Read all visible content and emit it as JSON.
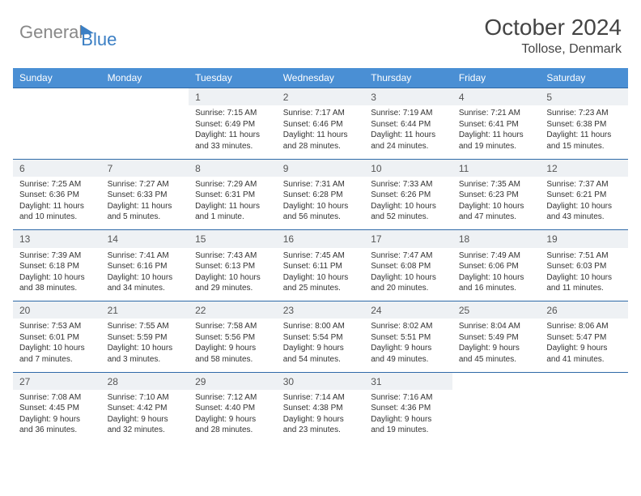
{
  "brand": {
    "general": "General",
    "blue": "Blue"
  },
  "title": "October 2024",
  "location": "Tollose, Denmark",
  "dayHeaders": [
    "Sunday",
    "Monday",
    "Tuesday",
    "Wednesday",
    "Thursday",
    "Friday",
    "Saturday"
  ],
  "colors": {
    "header_bg": "#4a8fd4",
    "header_border": "#2f6aa8",
    "dayshade": "#eef1f4",
    "logo_gray": "#888888",
    "logo_blue": "#3b7fc4"
  },
  "weeks": [
    [
      null,
      null,
      {
        "n": "1",
        "sr": "Sunrise: 7:15 AM",
        "ss": "Sunset: 6:49 PM",
        "d1": "Daylight: 11 hours",
        "d2": "and 33 minutes."
      },
      {
        "n": "2",
        "sr": "Sunrise: 7:17 AM",
        "ss": "Sunset: 6:46 PM",
        "d1": "Daylight: 11 hours",
        "d2": "and 28 minutes."
      },
      {
        "n": "3",
        "sr": "Sunrise: 7:19 AM",
        "ss": "Sunset: 6:44 PM",
        "d1": "Daylight: 11 hours",
        "d2": "and 24 minutes."
      },
      {
        "n": "4",
        "sr": "Sunrise: 7:21 AM",
        "ss": "Sunset: 6:41 PM",
        "d1": "Daylight: 11 hours",
        "d2": "and 19 minutes."
      },
      {
        "n": "5",
        "sr": "Sunrise: 7:23 AM",
        "ss": "Sunset: 6:38 PM",
        "d1": "Daylight: 11 hours",
        "d2": "and 15 minutes."
      }
    ],
    [
      {
        "n": "6",
        "sr": "Sunrise: 7:25 AM",
        "ss": "Sunset: 6:36 PM",
        "d1": "Daylight: 11 hours",
        "d2": "and 10 minutes."
      },
      {
        "n": "7",
        "sr": "Sunrise: 7:27 AM",
        "ss": "Sunset: 6:33 PM",
        "d1": "Daylight: 11 hours",
        "d2": "and 5 minutes."
      },
      {
        "n": "8",
        "sr": "Sunrise: 7:29 AM",
        "ss": "Sunset: 6:31 PM",
        "d1": "Daylight: 11 hours",
        "d2": "and 1 minute."
      },
      {
        "n": "9",
        "sr": "Sunrise: 7:31 AM",
        "ss": "Sunset: 6:28 PM",
        "d1": "Daylight: 10 hours",
        "d2": "and 56 minutes."
      },
      {
        "n": "10",
        "sr": "Sunrise: 7:33 AM",
        "ss": "Sunset: 6:26 PM",
        "d1": "Daylight: 10 hours",
        "d2": "and 52 minutes."
      },
      {
        "n": "11",
        "sr": "Sunrise: 7:35 AM",
        "ss": "Sunset: 6:23 PM",
        "d1": "Daylight: 10 hours",
        "d2": "and 47 minutes."
      },
      {
        "n": "12",
        "sr": "Sunrise: 7:37 AM",
        "ss": "Sunset: 6:21 PM",
        "d1": "Daylight: 10 hours",
        "d2": "and 43 minutes."
      }
    ],
    [
      {
        "n": "13",
        "sr": "Sunrise: 7:39 AM",
        "ss": "Sunset: 6:18 PM",
        "d1": "Daylight: 10 hours",
        "d2": "and 38 minutes."
      },
      {
        "n": "14",
        "sr": "Sunrise: 7:41 AM",
        "ss": "Sunset: 6:16 PM",
        "d1": "Daylight: 10 hours",
        "d2": "and 34 minutes."
      },
      {
        "n": "15",
        "sr": "Sunrise: 7:43 AM",
        "ss": "Sunset: 6:13 PM",
        "d1": "Daylight: 10 hours",
        "d2": "and 29 minutes."
      },
      {
        "n": "16",
        "sr": "Sunrise: 7:45 AM",
        "ss": "Sunset: 6:11 PM",
        "d1": "Daylight: 10 hours",
        "d2": "and 25 minutes."
      },
      {
        "n": "17",
        "sr": "Sunrise: 7:47 AM",
        "ss": "Sunset: 6:08 PM",
        "d1": "Daylight: 10 hours",
        "d2": "and 20 minutes."
      },
      {
        "n": "18",
        "sr": "Sunrise: 7:49 AM",
        "ss": "Sunset: 6:06 PM",
        "d1": "Daylight: 10 hours",
        "d2": "and 16 minutes."
      },
      {
        "n": "19",
        "sr": "Sunrise: 7:51 AM",
        "ss": "Sunset: 6:03 PM",
        "d1": "Daylight: 10 hours",
        "d2": "and 11 minutes."
      }
    ],
    [
      {
        "n": "20",
        "sr": "Sunrise: 7:53 AM",
        "ss": "Sunset: 6:01 PM",
        "d1": "Daylight: 10 hours",
        "d2": "and 7 minutes."
      },
      {
        "n": "21",
        "sr": "Sunrise: 7:55 AM",
        "ss": "Sunset: 5:59 PM",
        "d1": "Daylight: 10 hours",
        "d2": "and 3 minutes."
      },
      {
        "n": "22",
        "sr": "Sunrise: 7:58 AM",
        "ss": "Sunset: 5:56 PM",
        "d1": "Daylight: 9 hours",
        "d2": "and 58 minutes."
      },
      {
        "n": "23",
        "sr": "Sunrise: 8:00 AM",
        "ss": "Sunset: 5:54 PM",
        "d1": "Daylight: 9 hours",
        "d2": "and 54 minutes."
      },
      {
        "n": "24",
        "sr": "Sunrise: 8:02 AM",
        "ss": "Sunset: 5:51 PM",
        "d1": "Daylight: 9 hours",
        "d2": "and 49 minutes."
      },
      {
        "n": "25",
        "sr": "Sunrise: 8:04 AM",
        "ss": "Sunset: 5:49 PM",
        "d1": "Daylight: 9 hours",
        "d2": "and 45 minutes."
      },
      {
        "n": "26",
        "sr": "Sunrise: 8:06 AM",
        "ss": "Sunset: 5:47 PM",
        "d1": "Daylight: 9 hours",
        "d2": "and 41 minutes."
      }
    ],
    [
      {
        "n": "27",
        "sr": "Sunrise: 7:08 AM",
        "ss": "Sunset: 4:45 PM",
        "d1": "Daylight: 9 hours",
        "d2": "and 36 minutes."
      },
      {
        "n": "28",
        "sr": "Sunrise: 7:10 AM",
        "ss": "Sunset: 4:42 PM",
        "d1": "Daylight: 9 hours",
        "d2": "and 32 minutes."
      },
      {
        "n": "29",
        "sr": "Sunrise: 7:12 AM",
        "ss": "Sunset: 4:40 PM",
        "d1": "Daylight: 9 hours",
        "d2": "and 28 minutes."
      },
      {
        "n": "30",
        "sr": "Sunrise: 7:14 AM",
        "ss": "Sunset: 4:38 PM",
        "d1": "Daylight: 9 hours",
        "d2": "and 23 minutes."
      },
      {
        "n": "31",
        "sr": "Sunrise: 7:16 AM",
        "ss": "Sunset: 4:36 PM",
        "d1": "Daylight: 9 hours",
        "d2": "and 19 minutes."
      },
      null,
      null
    ]
  ]
}
